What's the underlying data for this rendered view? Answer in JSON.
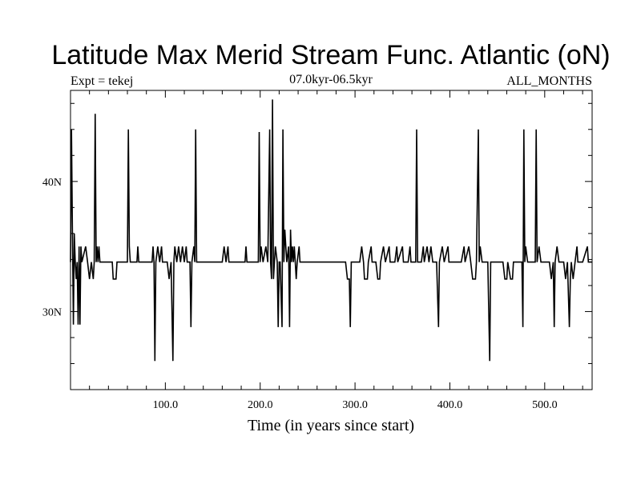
{
  "chart_data": {
    "type": "line",
    "title": "Latitude Max Merid Stream Func. Atlantic (oN)",
    "subtitle_left": "Expt = tekej",
    "subtitle_center": "07.0kyr-06.5kyr",
    "subtitle_right": "ALL_MONTHS",
    "xlabel": "Time (in years since start)",
    "ylabel": "",
    "xlim": [
      0,
      550
    ],
    "ylim": [
      24,
      47
    ],
    "x_ticks": [
      100,
      200,
      300,
      400,
      500
    ],
    "x_tick_labels": [
      "100.0",
      "200.0",
      "300.0",
      "400.0",
      "500.0"
    ],
    "y_ticks": [
      30,
      40
    ],
    "y_tick_labels": [
      "30N",
      "40N"
    ],
    "grid": false,
    "baseline": 33.8,
    "series": [
      {
        "name": "",
        "color": "#000000",
        "points": [
          [
            0,
            33.8
          ],
          [
            1,
            44
          ],
          [
            2,
            36
          ],
          [
            3,
            29
          ],
          [
            4,
            36
          ],
          [
            5,
            33.8
          ],
          [
            6,
            32.5
          ],
          [
            7,
            33.8
          ],
          [
            8,
            29
          ],
          [
            9,
            35
          ],
          [
            10,
            29
          ],
          [
            11,
            35
          ],
          [
            12,
            33.8
          ],
          [
            16,
            35
          ],
          [
            18,
            33.8
          ],
          [
            20,
            32.5
          ],
          [
            22,
            33.8
          ],
          [
            24,
            32.5
          ],
          [
            25,
            33.8
          ],
          [
            26,
            45.2
          ],
          [
            27,
            33.8
          ],
          [
            28,
            35
          ],
          [
            29,
            33.8
          ],
          [
            30,
            35
          ],
          [
            31,
            33.8
          ],
          [
            44,
            33.8
          ],
          [
            45,
            32.5
          ],
          [
            48,
            32.5
          ],
          [
            49,
            33.8
          ],
          [
            60,
            33.8
          ],
          [
            61,
            44
          ],
          [
            62,
            35
          ],
          [
            63,
            33.8
          ],
          [
            70,
            33.8
          ],
          [
            71,
            35
          ],
          [
            72,
            33.8
          ],
          [
            86,
            33.8
          ],
          [
            87,
            35
          ],
          [
            88,
            33.8
          ],
          [
            89,
            26.2
          ],
          [
            90,
            33.8
          ],
          [
            92,
            35
          ],
          [
            94,
            33.8
          ],
          [
            96,
            35
          ],
          [
            97,
            33.8
          ],
          [
            102,
            33.8
          ],
          [
            104,
            32.5
          ],
          [
            106,
            33.8
          ],
          [
            108,
            26.2
          ],
          [
            109,
            33.8
          ],
          [
            110,
            35
          ],
          [
            112,
            33.8
          ],
          [
            114,
            35
          ],
          [
            116,
            33.8
          ],
          [
            118,
            35
          ],
          [
            120,
            33.8
          ],
          [
            122,
            35
          ],
          [
            123,
            33.8
          ],
          [
            126,
            33.8
          ],
          [
            127,
            28.8
          ],
          [
            128,
            33.8
          ],
          [
            130,
            35
          ],
          [
            131,
            33.8
          ],
          [
            132,
            44
          ],
          [
            133,
            33.8
          ],
          [
            160,
            33.8
          ],
          [
            162,
            35
          ],
          [
            164,
            33.8
          ],
          [
            166,
            35
          ],
          [
            167,
            33.8
          ],
          [
            184,
            33.8
          ],
          [
            185,
            35
          ],
          [
            186,
            33.8
          ],
          [
            198,
            33.8
          ],
          [
            199,
            43.8
          ],
          [
            200,
            33.8
          ],
          [
            201,
            35
          ],
          [
            203,
            33.8
          ],
          [
            206,
            35
          ],
          [
            208,
            33.8
          ],
          [
            210,
            44
          ],
          [
            211,
            33.8
          ],
          [
            212,
            32.5
          ],
          [
            213,
            46.3
          ],
          [
            214,
            32.5
          ],
          [
            215,
            33.8
          ],
          [
            216,
            35
          ],
          [
            218,
            33.8
          ],
          [
            219,
            28.8
          ],
          [
            220,
            33.8
          ],
          [
            221,
            33.8
          ],
          [
            223,
            28.8
          ],
          [
            224,
            44
          ],
          [
            225,
            33.8
          ],
          [
            226,
            36.3
          ],
          [
            227,
            35
          ],
          [
            228,
            33.8
          ],
          [
            230,
            35
          ],
          [
            231,
            28.8
          ],
          [
            232,
            36.3
          ],
          [
            233,
            33.8
          ],
          [
            234,
            35
          ],
          [
            235,
            33.8
          ],
          [
            236,
            35
          ],
          [
            237,
            33.8
          ],
          [
            238,
            32.5
          ],
          [
            239,
            33.8
          ],
          [
            241,
            35
          ],
          [
            242,
            33.8
          ],
          [
            250,
            33.8
          ],
          [
            290,
            33.8
          ],
          [
            292,
            32.5
          ],
          [
            294,
            32.5
          ],
          [
            295,
            28.8
          ],
          [
            296,
            33.8
          ],
          [
            305,
            33.8
          ],
          [
            307,
            35
          ],
          [
            309,
            33.8
          ],
          [
            310,
            32.5
          ],
          [
            313,
            32.5
          ],
          [
            314,
            33.8
          ],
          [
            317,
            35
          ],
          [
            318,
            33.8
          ],
          [
            322,
            33.8
          ],
          [
            324,
            32.5
          ],
          [
            326,
            32.5
          ],
          [
            327,
            33.8
          ],
          [
            330,
            35
          ],
          [
            332,
            33.8
          ],
          [
            336,
            35
          ],
          [
            337,
            33.8
          ],
          [
            342,
            33.8
          ],
          [
            344,
            35
          ],
          [
            345,
            33.8
          ],
          [
            350,
            35
          ],
          [
            351,
            33.8
          ],
          [
            356,
            33.8
          ],
          [
            358,
            35
          ],
          [
            359,
            33.8
          ],
          [
            364,
            33.8
          ],
          [
            365,
            44
          ],
          [
            366,
            33.8
          ],
          [
            370,
            33.8
          ],
          [
            372,
            35
          ],
          [
            373,
            33.8
          ],
          [
            376,
            35
          ],
          [
            378,
            33.8
          ],
          [
            380,
            35
          ],
          [
            382,
            33.8
          ],
          [
            386,
            33.8
          ],
          [
            388,
            28.8
          ],
          [
            389,
            33.8
          ],
          [
            392,
            35
          ],
          [
            394,
            33.8
          ],
          [
            398,
            35
          ],
          [
            399,
            33.8
          ],
          [
            412,
            33.8
          ],
          [
            415,
            35
          ],
          [
            416,
            33.8
          ],
          [
            420,
            35
          ],
          [
            422,
            33.8
          ],
          [
            424,
            32.5
          ],
          [
            427,
            32.5
          ],
          [
            428,
            33.8
          ],
          [
            430,
            44
          ],
          [
            431,
            33.8
          ],
          [
            432,
            35
          ],
          [
            434,
            33.8
          ],
          [
            440,
            33.8
          ],
          [
            442,
            26.2
          ],
          [
            443,
            33.8
          ],
          [
            456,
            33.8
          ],
          [
            458,
            32.5
          ],
          [
            460,
            32.5
          ],
          [
            461,
            33.8
          ],
          [
            464,
            32.5
          ],
          [
            466,
            32.5
          ],
          [
            467,
            33.8
          ],
          [
            476,
            33.8
          ],
          [
            477,
            28.8
          ],
          [
            478,
            44
          ],
          [
            479,
            33.8
          ],
          [
            480,
            35
          ],
          [
            482,
            33.8
          ],
          [
            490,
            33.8
          ],
          [
            491,
            44
          ],
          [
            492,
            33.8
          ],
          [
            494,
            35
          ],
          [
            496,
            33.8
          ],
          [
            505,
            33.8
          ],
          [
            507,
            32.5
          ],
          [
            509,
            33.8
          ],
          [
            510,
            28.8
          ],
          [
            511,
            33.8
          ],
          [
            513,
            35
          ],
          [
            515,
            33.8
          ],
          [
            518,
            33.8
          ],
          [
            520,
            33.8
          ],
          [
            522,
            32.5
          ],
          [
            524,
            33.8
          ],
          [
            526,
            28.8
          ],
          [
            527,
            32.5
          ],
          [
            528,
            33.8
          ],
          [
            530,
            32.5
          ],
          [
            532,
            33.8
          ],
          [
            534,
            35
          ],
          [
            535,
            33.8
          ],
          [
            540,
            33.8
          ],
          [
            545,
            35
          ],
          [
            546,
            33.8
          ],
          [
            550,
            33.8
          ]
        ]
      }
    ]
  }
}
